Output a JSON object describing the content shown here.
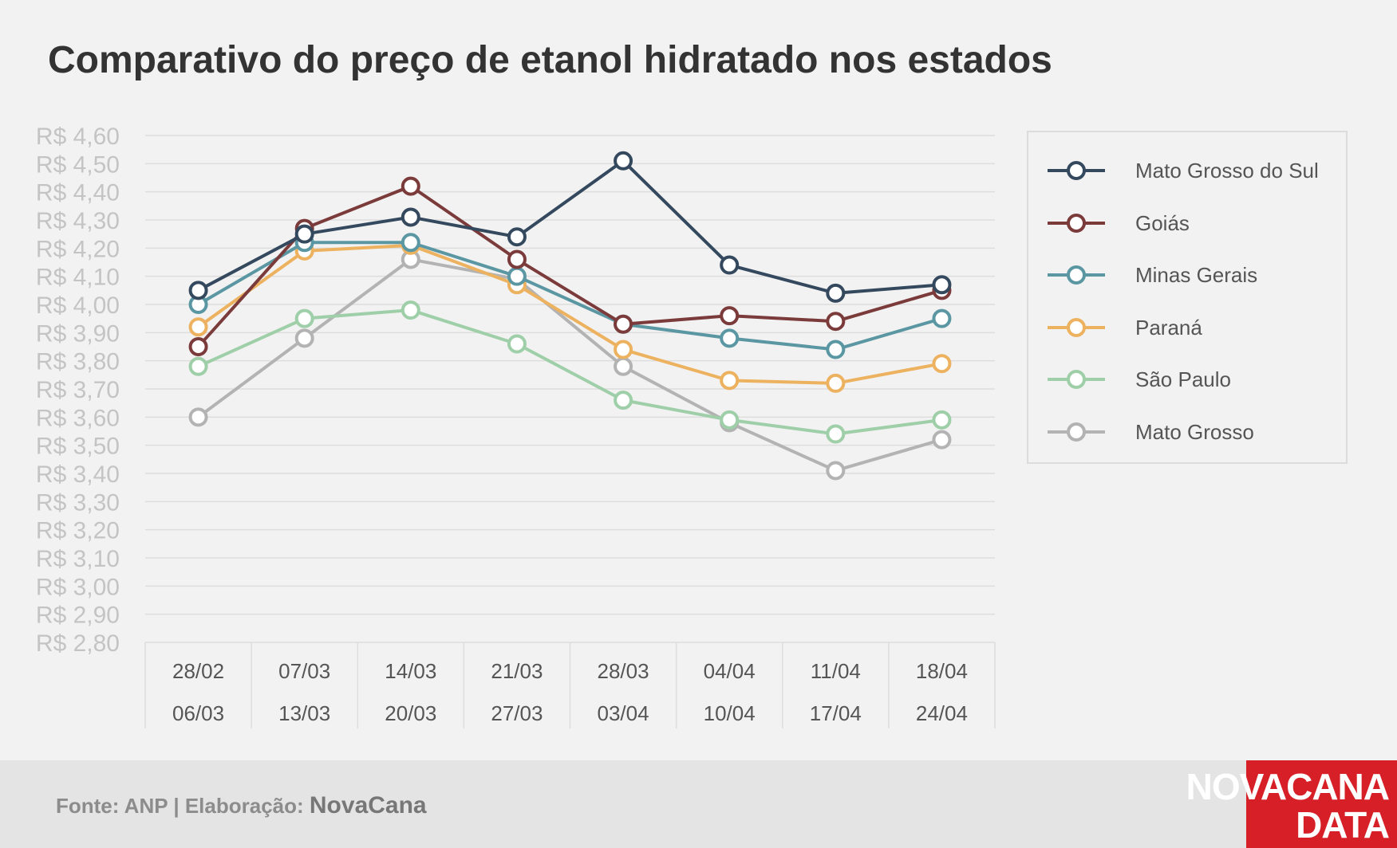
{
  "chart_data": {
    "type": "line",
    "title": "Comparativo do preço de etanol hidratado nos estados",
    "categories": [
      [
        "28/02",
        "06/03"
      ],
      [
        "07/03",
        "13/03"
      ],
      [
        "14/03",
        "20/03"
      ],
      [
        "21/03",
        "27/03"
      ],
      [
        "28/03",
        "03/04"
      ],
      [
        "04/04",
        "10/04"
      ],
      [
        "11/04",
        "17/04"
      ],
      [
        "18/04",
        "24/04"
      ]
    ],
    "yticks": [
      "R$ 2,80",
      "R$ 2,90",
      "R$ 3,00",
      "R$ 3,10",
      "R$ 3,20",
      "R$ 3,30",
      "R$ 3,40",
      "R$ 3,50",
      "R$ 3,60",
      "R$ 3,70",
      "R$ 3,80",
      "R$ 3,90",
      "R$ 4,00",
      "R$ 4,10",
      "R$ 4,20",
      "R$ 4,30",
      "R$ 4,40",
      "R$ 4,50",
      "R$ 4,60"
    ],
    "ylim": [
      2.8,
      4.6
    ],
    "grid": true,
    "legend_position": "right",
    "series": [
      {
        "name": "Mato Grosso do Sul",
        "color": "#34495e",
        "values": [
          4.05,
          4.25,
          4.31,
          4.24,
          4.51,
          4.14,
          4.04,
          4.07
        ]
      },
      {
        "name": "Goiás",
        "color": "#7b3b3b",
        "values": [
          3.85,
          4.27,
          4.42,
          4.16,
          3.93,
          3.96,
          3.94,
          4.05
        ]
      },
      {
        "name": "Minas Gerais",
        "color": "#5b97a3",
        "values": [
          4.0,
          4.22,
          4.22,
          4.1,
          3.93,
          3.88,
          3.84,
          3.95
        ]
      },
      {
        "name": "Paraná",
        "color": "#edb25f",
        "values": [
          3.92,
          4.19,
          4.21,
          4.07,
          3.84,
          3.73,
          3.72,
          3.79
        ]
      },
      {
        "name": "São Paulo",
        "color": "#9fcfa8",
        "values": [
          3.78,
          3.95,
          3.98,
          3.86,
          3.66,
          3.59,
          3.54,
          3.59
        ]
      },
      {
        "name": "Mato Grosso",
        "color": "#b3b3b3",
        "values": [
          3.6,
          3.88,
          4.16,
          4.09,
          3.78,
          3.58,
          3.41,
          3.52
        ]
      }
    ]
  },
  "footer": {
    "source_text": "Fonte: ANP | Elaboração: ",
    "source_brand": "NovaCana",
    "logo_line1": "NOVACANA",
    "logo_line2": "DATA"
  }
}
